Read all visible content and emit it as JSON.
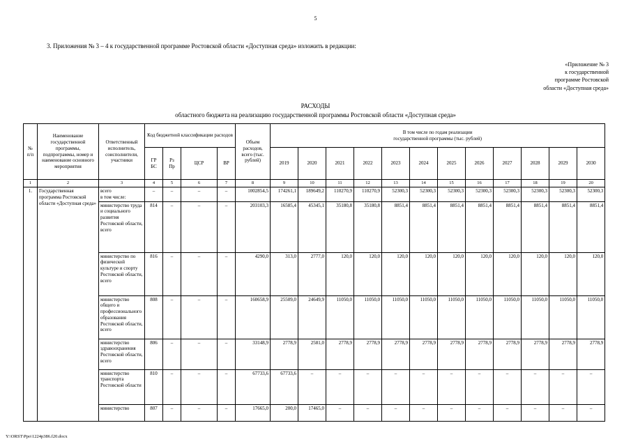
{
  "page": {
    "number": "5",
    "footer_path": "Y:\\ORST\\Ppo\\1224p386.f20.docx"
  },
  "intro": {
    "paragraph": "3. Приложения № 3 – 4 к государственной программе Ростовской области «Доступная среда» изложить в редакции:",
    "appendix_lines": [
      "«Приложение № 3",
      "к государственной",
      "программе Ростовской",
      "области «Доступная среда»"
    ]
  },
  "heading": {
    "title": "РАСХОДЫ",
    "subtitle": "областного бюджета на реализацию государственной программы Ростовской области «Доступная среда»"
  },
  "table": {
    "header": {
      "num": "№\nп/п",
      "name": "Наименование государственной программы, подпрограммы, номер и наименование основного мероприятия",
      "executor": "Ответственный исполнитель, соисполнители, участники",
      "budget_code": "Код бюджетной классификации расходов",
      "grbs": "ГР\nБС",
      "rzpr": "Рз\nПр",
      "csr": "ЦСР",
      "vr": "ВР",
      "total": "Объем расходов, всего (тыс. рублей)",
      "years_group": "В том числе по годам реализации\nгосударственной программы (тыс. рублей)",
      "years": [
        "2019",
        "2020",
        "2021",
        "2022",
        "2023",
        "2024",
        "2025",
        "2026",
        "2027",
        "2028",
        "2029",
        "2030"
      ]
    },
    "column_numbers": [
      "1",
      "2",
      "3",
      "4",
      "5",
      "6",
      "7",
      "8",
      "9",
      "10",
      "11",
      "12",
      "13",
      "14",
      "15",
      "16",
      "17",
      "18",
      "19",
      "20"
    ],
    "row_number": "1.",
    "program_name": "Государственная программа Ростовской области «Доступная среда»",
    "rows": [
      {
        "executor": "всего\nв том числе:",
        "codes": [
          "–",
          "–",
          "–",
          "–"
        ],
        "total": "1002854,5",
        "years": [
          "174261,1",
          "189649,2",
          "110270,9",
          "110270,9",
          "52300,3",
          "52300,3",
          "52300,3",
          "52300,3",
          "52300,3",
          "52300,3",
          "52300,3",
          "52300,3"
        ]
      },
      {
        "executor": "министерство труда и социального развития Ростовской области, всего",
        "codes": [
          "814",
          "–",
          "–",
          "–"
        ],
        "total": "203103,3",
        "years": [
          "16585,4",
          "45345,1",
          "35180,8",
          "35180,8",
          "8851,4",
          "8851,4",
          "8851,4",
          "8851,4",
          "8851,4",
          "8851,4",
          "8851,4",
          "8851,4"
        ]
      },
      {
        "executor": "министерство по физической культуре и спорту Ростовской области, всего",
        "codes": [
          "816",
          "–",
          "–",
          "–"
        ],
        "total": "4290,0",
        "years": [
          "313,0",
          "2777,0",
          "120,0",
          "120,0",
          "120,0",
          "120,0",
          "120,0",
          "120,0",
          "120,0",
          "120,0",
          "120,0",
          "120,0"
        ]
      },
      {
        "executor": "министерство общего и профессионального образования Ростовской области, всего",
        "codes": [
          "808",
          "–",
          "–",
          "–"
        ],
        "total": "160658,9",
        "years": [
          "25509,0",
          "24649,9",
          "11050,0",
          "11050,0",
          "11050,0",
          "11050,0",
          "11050,0",
          "11050,0",
          "11050,0",
          "11050,0",
          "11050,0",
          "11050,0"
        ]
      },
      {
        "executor": "министерство здравоохранения Ростовской области, всего",
        "codes": [
          "806",
          "–",
          "–",
          "–"
        ],
        "total": "33148,9",
        "years": [
          "2778,9",
          "2581,0",
          "2778,9",
          "2778,9",
          "2778,9",
          "2778,9",
          "2778,9",
          "2778,9",
          "2778,9",
          "2778,9",
          "2778,9",
          "2778,9"
        ]
      },
      {
        "executor": "министерство транспорта Ростовской области",
        "codes": [
          "810",
          "–",
          "–",
          "–"
        ],
        "total": "67733,6",
        "years": [
          "67733,6",
          "–",
          "–",
          "–",
          "–",
          "–",
          "–",
          "–",
          "–",
          "–",
          "–",
          "–"
        ]
      },
      {
        "executor": "министерство",
        "codes": [
          "807",
          "–",
          "–",
          "–"
        ],
        "total": "17665,0",
        "years": [
          "200,0",
          "17465,0",
          "–",
          "–",
          "–",
          "–",
          "–",
          "–",
          "–",
          "–",
          "–",
          "–"
        ]
      }
    ]
  }
}
